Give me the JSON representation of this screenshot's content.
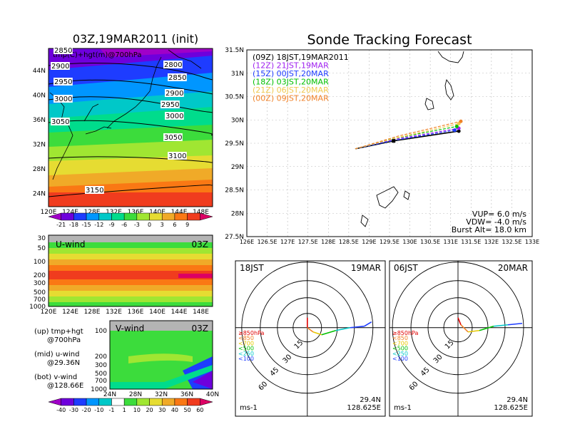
{
  "left_panel": {
    "title": "03Z,19MAR2011 (init)",
    "map_label": "tmp(C)+hgt(m)@700hPa",
    "lon_ticks": [
      "120E",
      "124E",
      "128E",
      "132E",
      "136E",
      "140E",
      "144E",
      "148E"
    ],
    "lat_ticks": [
      "44N",
      "40N",
      "36N",
      "32N",
      "28N",
      "24N"
    ],
    "height_contours": [
      "2850",
      "2800",
      "2900",
      "2850",
      "2950",
      "2900",
      "3000",
      "2950",
      "3050",
      "3000",
      "3050",
      "3100",
      "3150"
    ],
    "temp_scale": [
      "-21",
      "-18",
      "-15",
      "-12",
      "-9",
      "-6",
      "-3",
      "0",
      "3",
      "6",
      "9"
    ],
    "colors": [
      "#a000c8",
      "#6e00dc",
      "#1e3cff",
      "#0096ff",
      "#00c8c8",
      "#00dc8c",
      "#3cdc3c",
      "#a0e632",
      "#e6dc32",
      "#f0aa28",
      "#fa7814",
      "#f03c1e",
      "#dc0064"
    ]
  },
  "u_wind": {
    "label": "U-wind",
    "time": "03Z",
    "p_ticks": [
      "30",
      "50",
      "100",
      "200",
      "300",
      "500",
      "700",
      "1000"
    ],
    "lon_ticks": [
      "120E",
      "124E",
      "128E",
      "132E",
      "136E",
      "140E",
      "144E",
      "148E"
    ]
  },
  "v_wind": {
    "label": "V-wind",
    "time": "03Z",
    "p_ticks": [
      "100",
      "200",
      "300",
      "500",
      "700",
      "1000"
    ],
    "lat_ticks": [
      "24N",
      "28N",
      "32N",
      "36N",
      "40N"
    ]
  },
  "legend_text": {
    "up": "(up) tmp+hgt",
    "up2": "@700hPa",
    "mid": "(mid) u-wind",
    "mid2": "@29.36N",
    "bot": "(bot) v-wind",
    "bot2": "@128.66E"
  },
  "wind_scale": [
    "-40",
    "-30",
    "-20",
    "-10",
    "-1",
    "1",
    "10",
    "20",
    "30",
    "40",
    "50",
    "60"
  ],
  "right_title": "Sonde Tracking Forecast",
  "chart_data": {
    "type": "line",
    "xlabel": "",
    "ylabel": "",
    "xlim": [
      126,
      133
    ],
    "ylim": [
      27.5,
      31.5
    ],
    "x_ticks": [
      "126E",
      "126.5E",
      "127E",
      "127.5E",
      "128E",
      "128.5E",
      "129E",
      "129.5E",
      "130E",
      "130.5E",
      "131E",
      "131.5E",
      "132E",
      "132.5E",
      "133E"
    ],
    "y_ticks": [
      "27.5N",
      "28N",
      "28.5N",
      "29N",
      "29.5N",
      "30N",
      "30.5N",
      "31N",
      "31.5N"
    ],
    "series": [
      {
        "name": "(09Z) 18JST,19MAR2011",
        "color": "#000000",
        "x": [
          128.66,
          129.6,
          131.2
        ],
        "y": [
          29.38,
          29.55,
          29.76
        ]
      },
      {
        "name": "(12Z) 21JST,19MAR",
        "color": "#a020f0",
        "x": [
          128.66,
          129.6,
          131.2
        ],
        "y": [
          29.38,
          29.58,
          29.82
        ]
      },
      {
        "name": "(15Z) 00JST,20MAR",
        "color": "#1e3cff",
        "x": [
          128.66,
          129.6,
          131.1
        ],
        "y": [
          29.38,
          29.56,
          29.78
        ]
      },
      {
        "name": "(18Z) 03JST,20MAR",
        "color": "#00c000",
        "x": [
          128.66,
          129.6,
          131.15
        ],
        "y": [
          29.38,
          29.6,
          29.86
        ]
      },
      {
        "name": "(21Z) 06JST,20MAR",
        "color": "#f0c850",
        "x": [
          128.66,
          129.7,
          131.2
        ],
        "y": [
          29.38,
          29.62,
          29.92
        ]
      },
      {
        "name": "(00Z) 09JST,20MAR",
        "color": "#f08228",
        "x": [
          128.66,
          129.7,
          131.25
        ],
        "y": [
          29.38,
          29.65,
          29.97
        ]
      }
    ],
    "annotations": [
      "VUP= 6.0 m/s",
      "VDW= -4.0 m/s",
      "Burst Alt= 18.0 km"
    ]
  },
  "hodographs": [
    {
      "left": "18JST",
      "right": "19MAR",
      "rings": [
        "15",
        "30",
        "45",
        "60"
      ],
      "loc1": "29.4N",
      "loc2": "128.625E",
      "unit": "ms-1"
    },
    {
      "left": "06JST",
      "right": "20MAR",
      "rings": [
        "15",
        "30",
        "45",
        "60"
      ],
      "loc1": "29.4N",
      "loc2": "128.625E",
      "unit": "ms-1"
    }
  ],
  "hodo_legend": [
    "≥850hPa",
    "<850",
    "<700",
    "<500",
    "<250",
    "<100"
  ],
  "hodo_legend_colors": [
    "#e00000",
    "#f08228",
    "#e6c800",
    "#00c000",
    "#00c8c8",
    "#1e3cff"
  ]
}
